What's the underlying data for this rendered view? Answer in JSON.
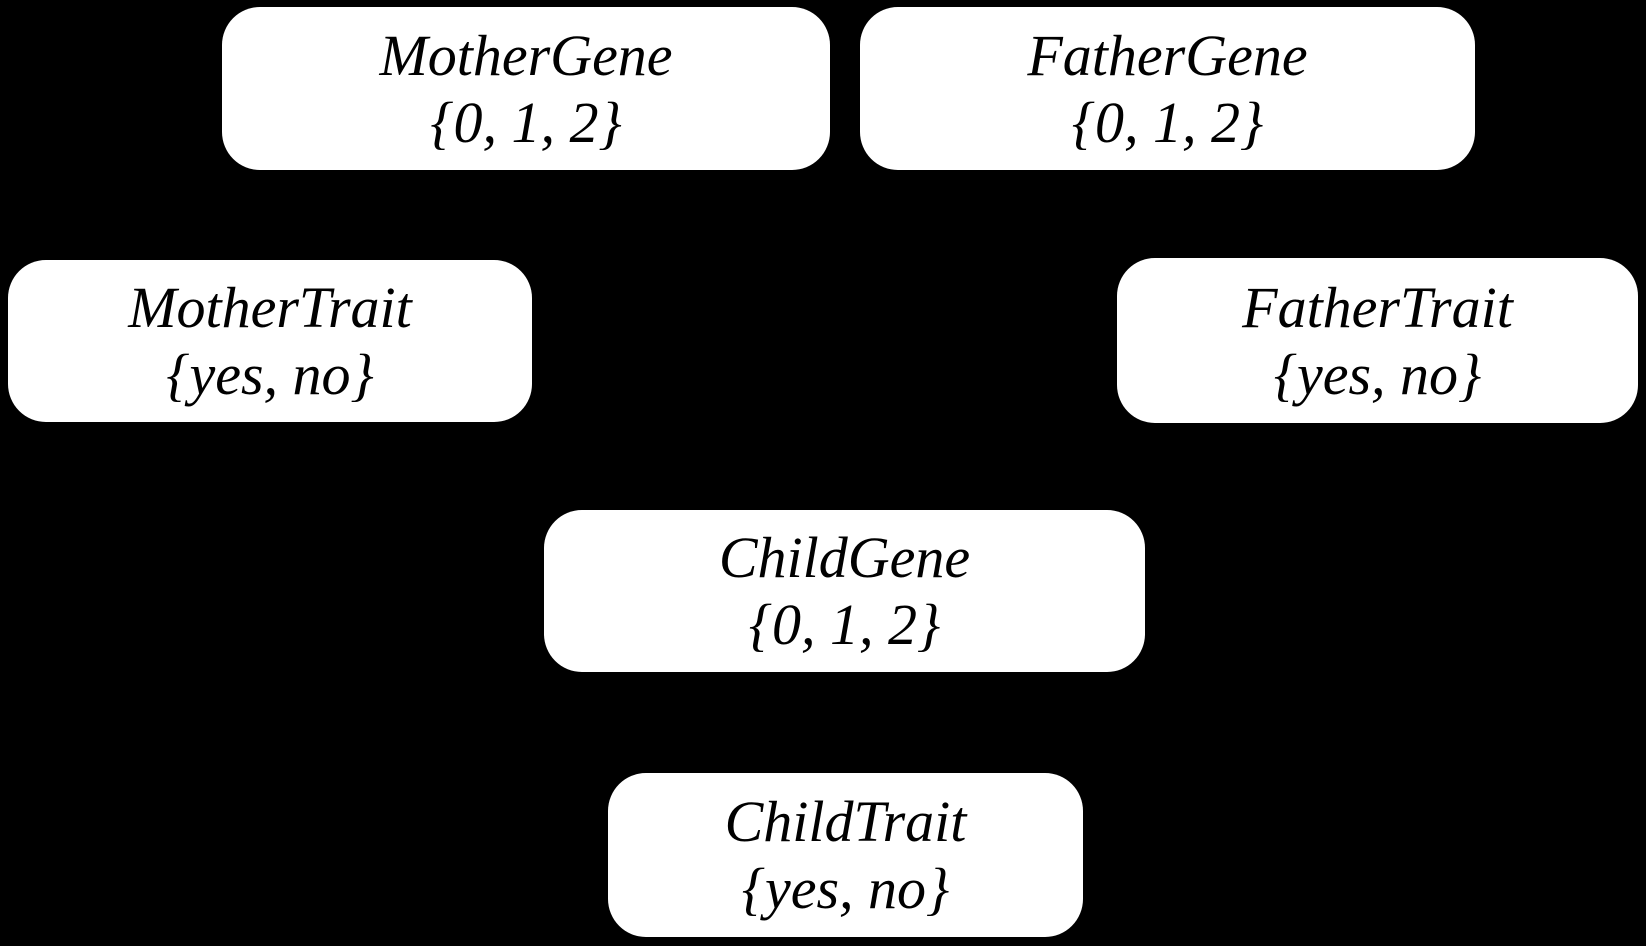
{
  "diagram": {
    "type": "bayesian-network",
    "background_color": "#000000",
    "node_fill_color": "#ffffff",
    "node_text_color": "#000000",
    "nodes": [
      {
        "id": "mothergene",
        "label": "MotherGene",
        "domain": "{0, 1, 2}"
      },
      {
        "id": "fathergene",
        "label": "FatherGene",
        "domain": "{0, 1, 2}"
      },
      {
        "id": "mothertrait",
        "label": "MotherTrait",
        "domain": "{yes, no}"
      },
      {
        "id": "fathertrait",
        "label": "FatherTrait",
        "domain": "{yes, no}"
      },
      {
        "id": "childgene",
        "label": "ChildGene",
        "domain": "{0, 1, 2}"
      },
      {
        "id": "childtrait",
        "label": "ChildTrait",
        "domain": "{yes, no}"
      }
    ]
  }
}
